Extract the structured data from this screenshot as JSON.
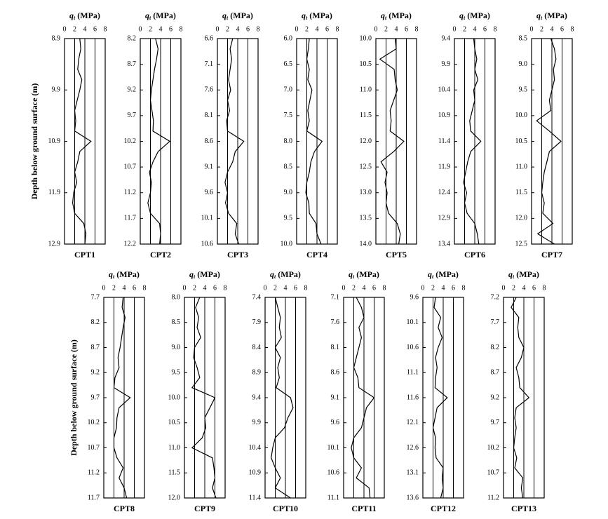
{
  "chart_data": [
    {
      "type": "line",
      "title": "CPT1",
      "xlabel": {
        "symbol": "q",
        "subscript": "t",
        "unit": "(MPa)"
      },
      "ylabel": "Depth below ground surface (m)",
      "xlim": [
        0,
        8
      ],
      "xticks": [
        0,
        2,
        4,
        6,
        8
      ],
      "ylim": [
        8.9,
        12.9
      ],
      "yticks": [
        8.9,
        9.9,
        10.9,
        11.9,
        12.9
      ],
      "grid": true,
      "color": "#000000",
      "y": [
        8.9,
        9.1,
        9.3,
        9.5,
        9.7,
        9.9,
        10.1,
        10.3,
        10.5,
        10.7,
        10.9,
        11.1,
        11.3,
        11.5,
        11.7,
        11.9,
        12.1,
        12.3,
        12.5,
        12.7,
        12.9
      ],
      "values": [
        3.0,
        3.2,
        2.8,
        2.6,
        3.4,
        3.0,
        2.5,
        2.0,
        2.2,
        2.0,
        5.2,
        3.0,
        2.6,
        2.0,
        2.4,
        1.8,
        1.6,
        2.0,
        3.8,
        4.2,
        4.0
      ]
    },
    {
      "type": "line",
      "title": "CPT2",
      "xlabel": {
        "symbol": "q",
        "subscript": "t",
        "unit": "(MPa)"
      },
      "xlim": [
        0,
        8
      ],
      "xticks": [
        0,
        2,
        4,
        6,
        8
      ],
      "ylim": [
        8.2,
        12.2
      ],
      "yticks": [
        8.2,
        8.7,
        9.2,
        9.7,
        10.2,
        10.7,
        11.2,
        11.7,
        12.2
      ],
      "grid": true,
      "color": "#000000",
      "y": [
        8.2,
        8.4,
        8.6,
        8.8,
        9.0,
        9.2,
        9.4,
        9.6,
        9.8,
        10.0,
        10.2,
        10.4,
        10.6,
        10.8,
        11.0,
        11.2,
        11.4,
        11.6,
        11.8,
        12.0,
        12.2
      ],
      "values": [
        3.0,
        3.5,
        3.2,
        2.8,
        2.5,
        2.2,
        2.0,
        2.3,
        2.6,
        2.5,
        5.8,
        3.5,
        2.5,
        1.8,
        2.2,
        2.0,
        1.5,
        2.0,
        3.8,
        4.0,
        3.8
      ]
    },
    {
      "type": "line",
      "title": "CPT3",
      "xlabel": {
        "symbol": "q",
        "subscript": "t",
        "unit": "(MPa)"
      },
      "xlim": [
        0,
        8
      ],
      "xticks": [
        0,
        2,
        4,
        6,
        8
      ],
      "ylim": [
        6.6,
        10.6
      ],
      "yticks": [
        6.6,
        7.1,
        7.6,
        8.1,
        8.6,
        9.1,
        9.6,
        10.1,
        10.6
      ],
      "grid": true,
      "color": "#000000",
      "y": [
        6.6,
        6.8,
        7.0,
        7.2,
        7.4,
        7.6,
        7.8,
        8.0,
        8.2,
        8.4,
        8.6,
        8.8,
        9.0,
        9.2,
        9.4,
        9.6,
        9.8,
        10.0,
        10.2,
        10.4,
        10.6
      ],
      "values": [
        3.0,
        2.5,
        2.8,
        2.5,
        2.2,
        2.6,
        2.0,
        2.4,
        1.8,
        2.0,
        5.2,
        3.5,
        3.0,
        2.0,
        1.5,
        2.0,
        1.6,
        2.2,
        3.8,
        3.5,
        4.2
      ]
    },
    {
      "type": "line",
      "title": "CPT4",
      "xlabel": {
        "symbol": "q",
        "subscript": "t",
        "unit": "(MPa)"
      },
      "xlim": [
        0,
        8
      ],
      "xticks": [
        0,
        2,
        4,
        6,
        8
      ],
      "ylim": [
        6.0,
        10.0
      ],
      "yticks": [
        {
          "value": 6,
          "label": "6.0"
        },
        6.5,
        {
          "value": 7,
          "label": "7.0"
        },
        7.5,
        {
          "value": 8,
          "label": "8.0"
        },
        8.5,
        {
          "value": 9,
          "label": "9.0"
        },
        9.5,
        {
          "value": 10,
          "label": "10.0"
        }
      ],
      "grid": true,
      "color": "#000000",
      "y": [
        6.0,
        6.2,
        6.4,
        6.6,
        6.8,
        7.0,
        7.2,
        7.4,
        7.6,
        7.8,
        8.0,
        8.2,
        8.4,
        8.6,
        8.8,
        9.0,
        9.2,
        9.4,
        9.6,
        9.8,
        10.0
      ],
      "values": [
        2.5,
        2.3,
        2.0,
        2.5,
        2.2,
        3.0,
        2.6,
        2.2,
        2.5,
        2.0,
        5.0,
        3.5,
        2.8,
        2.5,
        2.0,
        1.8,
        2.4,
        2.5,
        3.8,
        4.0,
        4.8
      ]
    },
    {
      "type": "line",
      "title": "CPT5",
      "xlabel": {
        "symbol": "q",
        "subscript": "t",
        "unit": "(MPa)"
      },
      "xlim": [
        0,
        8
      ],
      "xticks": [
        0,
        2,
        4,
        6,
        8
      ],
      "ylim": [
        10.0,
        14.0
      ],
      "yticks": [
        {
          "value": 10,
          "label": "10.0"
        },
        10.5,
        {
          "value": 11,
          "label": "11.0"
        },
        11.5,
        {
          "value": 12,
          "label": "12.0"
        },
        12.5,
        {
          "value": 13,
          "label": "13.0"
        },
        13.5,
        {
          "value": 14,
          "label": "14.0"
        }
      ],
      "grid": true,
      "color": "#000000",
      "y": [
        10.0,
        10.2,
        10.4,
        10.6,
        10.8,
        11.0,
        11.2,
        11.4,
        11.6,
        11.8,
        12.0,
        12.2,
        12.4,
        12.6,
        12.8,
        13.0,
        13.2,
        13.4,
        13.6,
        13.8,
        14.0
      ],
      "values": [
        3.8,
        4.0,
        0.8,
        3.6,
        3.8,
        4.2,
        3.5,
        2.8,
        3.0,
        2.8,
        5.5,
        3.5,
        1.0,
        2.2,
        1.8,
        2.2,
        2.0,
        2.5,
        4.2,
        4.8,
        4.5
      ]
    },
    {
      "type": "line",
      "title": "CPT6",
      "xlabel": {
        "symbol": "q",
        "subscript": "t",
        "unit": "(MPa)"
      },
      "xlim": [
        0,
        8
      ],
      "xticks": [
        0,
        2,
        4,
        6,
        8
      ],
      "ylim": [
        9.4,
        13.4
      ],
      "yticks": [
        9.4,
        9.9,
        10.4,
        10.9,
        11.4,
        11.9,
        12.4,
        12.9,
        13.4
      ],
      "grid": true,
      "color": "#000000",
      "y": [
        9.4,
        9.6,
        9.8,
        10.0,
        10.2,
        10.4,
        10.6,
        10.8,
        11.0,
        11.2,
        11.4,
        11.6,
        11.8,
        12.0,
        12.2,
        12.4,
        12.6,
        12.8,
        13.0,
        13.2,
        13.4
      ],
      "values": [
        3.8,
        4.0,
        4.4,
        4.0,
        4.6,
        3.8,
        4.0,
        3.5,
        3.0,
        3.2,
        5.2,
        3.2,
        2.6,
        2.2,
        1.8,
        2.4,
        2.0,
        2.5,
        4.0,
        4.5,
        4.8
      ]
    },
    {
      "type": "line",
      "title": "CPT7",
      "xlabel": {
        "symbol": "q",
        "subscript": "t",
        "unit": "(MPa)"
      },
      "xlim": [
        0,
        8
      ],
      "xticks": [
        0,
        2,
        4,
        6,
        8
      ],
      "ylim": [
        8.5,
        12.5
      ],
      "yticks": [
        8.5,
        {
          "value": 9,
          "label": "9.0"
        },
        9.5,
        {
          "value": 10,
          "label": "10.0"
        },
        10.5,
        {
          "value": 11,
          "label": "11.0"
        },
        11.5,
        {
          "value": 12,
          "label": "12.0"
        },
        12.5
      ],
      "grid": true,
      "color": "#000000",
      "y": [
        8.5,
        8.7,
        8.9,
        9.1,
        9.3,
        9.5,
        9.7,
        9.9,
        10.1,
        10.3,
        10.5,
        10.7,
        10.9,
        11.1,
        11.3,
        11.5,
        11.7,
        11.9,
        12.1,
        12.3,
        12.5
      ],
      "values": [
        3.8,
        4.5,
        4.8,
        4.3,
        4.5,
        4.0,
        3.5,
        3.8,
        1.0,
        3.5,
        5.8,
        3.5,
        3.0,
        2.5,
        2.2,
        2.0,
        2.5,
        2.2,
        4.2,
        1.2,
        4.5
      ]
    },
    {
      "type": "line",
      "title": "CPT8",
      "xlabel": {
        "symbol": "q",
        "subscript": "t",
        "unit": "(MPa)"
      },
      "ylabel": "Depth below ground surface (m)",
      "xlim": [
        0,
        8
      ],
      "xticks": [
        0,
        2,
        4,
        6,
        8
      ],
      "ylim": [
        7.7,
        11.7
      ],
      "yticks": [
        7.7,
        8.2,
        8.7,
        9.2,
        9.7,
        10.2,
        10.7,
        11.2,
        11.7
      ],
      "grid": true,
      "color": "#000000",
      "y": [
        7.7,
        7.9,
        8.1,
        8.3,
        8.5,
        8.7,
        8.9,
        9.1,
        9.3,
        9.5,
        9.7,
        9.9,
        10.1,
        10.3,
        10.5,
        10.7,
        10.9,
        11.1,
        11.3,
        11.5,
        11.7
      ],
      "values": [
        3.8,
        3.6,
        4.2,
        3.8,
        3.5,
        3.2,
        2.8,
        3.0,
        2.2,
        2.0,
        5.2,
        3.0,
        2.6,
        2.5,
        2.0,
        2.0,
        2.6,
        3.8,
        3.0,
        4.0,
        4.5
      ]
    },
    {
      "type": "line",
      "title": "CPT9",
      "xlabel": {
        "symbol": "q",
        "subscript": "t",
        "unit": "(MPa)"
      },
      "xlim": [
        0,
        8
      ],
      "xticks": [
        0,
        2,
        4,
        6,
        8
      ],
      "ylim": [
        8.0,
        12.0
      ],
      "yticks": [
        {
          "value": 8,
          "label": "8.0"
        },
        8.5,
        {
          "value": 9,
          "label": "9.0"
        },
        9.5,
        {
          "value": 10,
          "label": "10.0"
        },
        10.5,
        {
          "value": 11,
          "label": "11.0"
        },
        11.5,
        {
          "value": 12,
          "label": "12.0"
        }
      ],
      "grid": true,
      "color": "#000000",
      "y": [
        8.0,
        8.2,
        8.4,
        8.6,
        8.8,
        9.0,
        9.2,
        9.4,
        9.6,
        9.8,
        10.0,
        10.2,
        10.4,
        10.6,
        10.8,
        11.0,
        11.2,
        11.4,
        11.6,
        11.8,
        12.0
      ],
      "values": [
        3.0,
        2.2,
        2.8,
        2.5,
        3.2,
        2.0,
        1.8,
        2.5,
        3.0,
        1.5,
        6.0,
        5.0,
        4.0,
        4.2,
        3.5,
        1.5,
        5.5,
        5.8,
        6.0,
        5.5,
        6.2
      ]
    },
    {
      "type": "line",
      "title": "CPT10",
      "xlabel": {
        "symbol": "q",
        "subscript": "t",
        "unit": "(MPa)"
      },
      "xlim": [
        0,
        8
      ],
      "xticks": [
        0,
        2,
        4,
        6,
        8
      ],
      "ylim": [
        7.4,
        11.4
      ],
      "yticks": [
        7.4,
        7.9,
        8.4,
        8.9,
        9.4,
        9.9,
        10.4,
        10.9,
        11.4
      ],
      "grid": true,
      "color": "#000000",
      "y": [
        7.4,
        7.6,
        7.8,
        8.0,
        8.2,
        8.4,
        8.6,
        8.8,
        9.0,
        9.2,
        9.4,
        9.6,
        9.8,
        10.0,
        10.2,
        10.4,
        10.6,
        10.8,
        11.0,
        11.2,
        11.4
      ],
      "values": [
        2.0,
        2.5,
        3.0,
        2.8,
        3.2,
        2.0,
        3.0,
        2.5,
        2.8,
        2.2,
        5.0,
        5.5,
        4.5,
        3.8,
        2.0,
        1.5,
        1.2,
        2.0,
        3.0,
        2.0,
        5.0
      ]
    },
    {
      "type": "line",
      "title": "CPT11",
      "xlabel": {
        "symbol": "q",
        "subscript": "t",
        "unit": "(MPa)"
      },
      "xlim": [
        0,
        8
      ],
      "xticks": [
        0,
        2,
        4,
        6,
        8
      ],
      "ylim": [
        7.1,
        11.1
      ],
      "yticks": [
        7.1,
        7.6,
        8.1,
        8.6,
        9.1,
        9.6,
        10.1,
        10.6,
        11.1
      ],
      "grid": true,
      "color": "#000000",
      "y": [
        7.1,
        7.3,
        7.5,
        7.7,
        7.9,
        8.1,
        8.3,
        8.5,
        8.7,
        8.9,
        9.1,
        9.3,
        9.5,
        9.7,
        9.9,
        10.1,
        10.3,
        10.5,
        10.7,
        10.9,
        11.1
      ],
      "values": [
        2.5,
        3.5,
        4.0,
        3.0,
        3.5,
        3.0,
        2.5,
        2.0,
        2.8,
        3.0,
        6.0,
        4.5,
        4.0,
        3.5,
        2.0,
        1.5,
        2.0,
        3.5,
        2.5,
        5.0,
        5.2
      ]
    },
    {
      "type": "line",
      "title": "CPT12",
      "xlabel": {
        "symbol": "q",
        "subscript": "t",
        "unit": "(MPa)"
      },
      "xlim": [
        0,
        8
      ],
      "xticks": [
        0,
        2,
        4,
        6,
        8
      ],
      "ylim": [
        9.6,
        13.6
      ],
      "yticks": [
        9.6,
        10.1,
        10.6,
        11.1,
        11.6,
        12.1,
        12.6,
        13.1,
        13.6
      ],
      "grid": true,
      "color": "#000000",
      "y": [
        9.6,
        9.8,
        10.0,
        10.2,
        10.4,
        10.6,
        10.8,
        11.0,
        11.2,
        11.4,
        11.6,
        11.8,
        12.0,
        12.2,
        12.4,
        12.6,
        12.8,
        13.0,
        13.2,
        13.4,
        13.6
      ],
      "values": [
        2.5,
        2.2,
        3.5,
        3.0,
        3.8,
        3.0,
        2.5,
        2.8,
        2.5,
        2.4,
        4.8,
        2.8,
        2.4,
        2.0,
        2.5,
        2.4,
        2.6,
        4.0,
        3.8,
        4.0,
        3.5
      ]
    },
    {
      "type": "line",
      "title": "CPT13",
      "xlabel": {
        "symbol": "q",
        "subscript": "t",
        "unit": "(MPa)"
      },
      "xlim": [
        0,
        8
      ],
      "xticks": [
        0,
        2,
        4,
        6,
        8
      ],
      "ylim": [
        7.2,
        11.2
      ],
      "yticks": [
        7.2,
        7.7,
        8.2,
        8.7,
        9.2,
        9.7,
        10.2,
        10.7,
        11.2
      ],
      "grid": true,
      "color": "#000000",
      "y": [
        7.2,
        7.4,
        7.6,
        7.8,
        8.0,
        8.2,
        8.4,
        8.6,
        8.8,
        9.0,
        9.2,
        9.4,
        9.6,
        9.8,
        10.0,
        10.2,
        10.4,
        10.6,
        10.8,
        11.0,
        11.2
      ],
      "values": [
        2.5,
        1.5,
        3.0,
        2.8,
        3.0,
        4.0,
        3.5,
        2.5,
        3.0,
        3.2,
        5.0,
        2.5,
        2.2,
        2.5,
        2.2,
        2.0,
        2.6,
        2.2,
        3.8,
        3.5,
        3.8
      ]
    }
  ]
}
